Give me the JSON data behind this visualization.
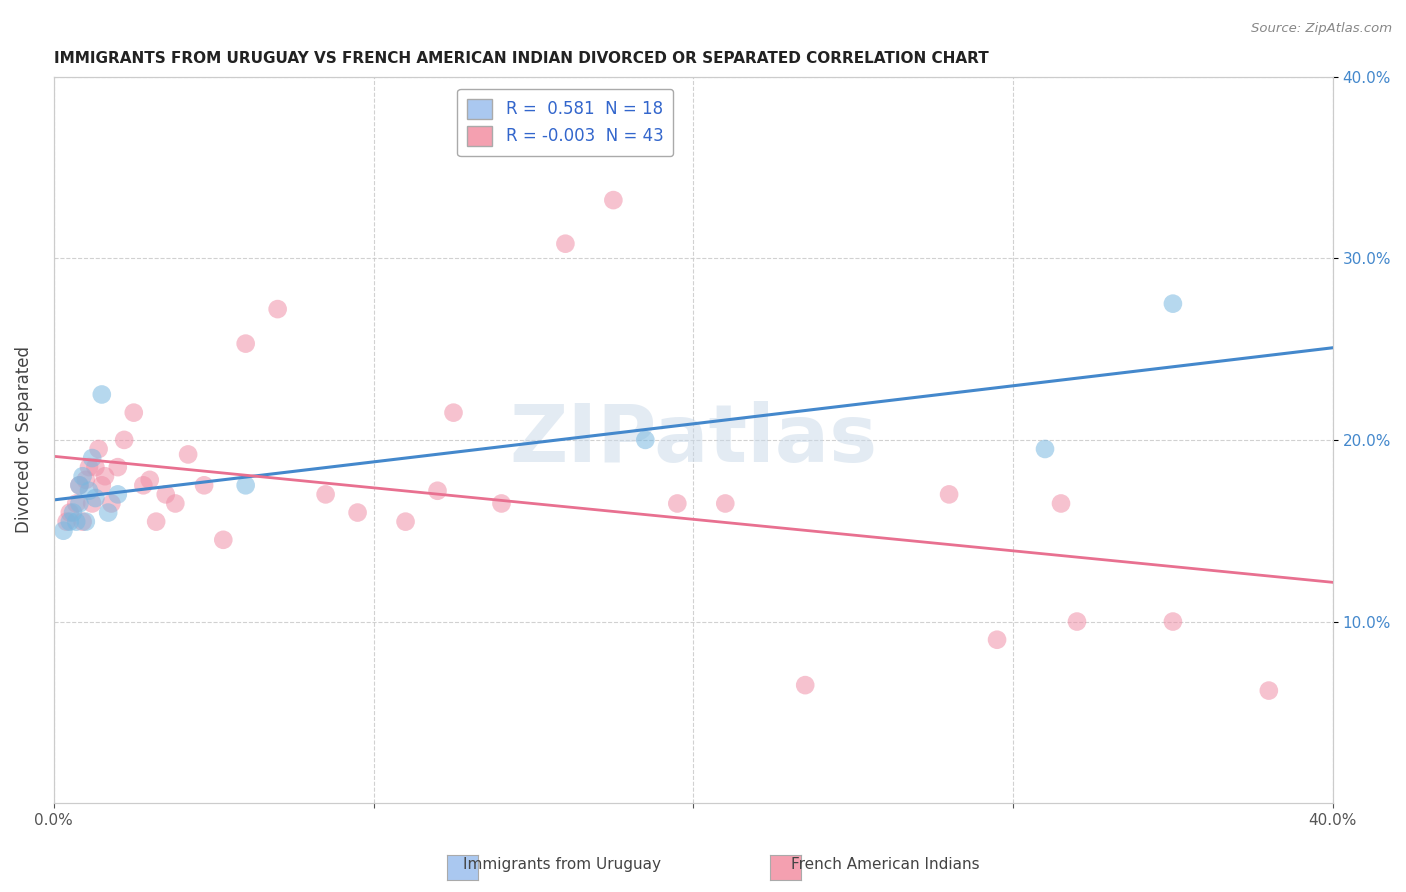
{
  "title": "IMMIGRANTS FROM URUGUAY VS FRENCH AMERICAN INDIAN DIVORCED OR SEPARATED CORRELATION CHART",
  "source": "Source: ZipAtlas.com",
  "ylabel": "Divorced or Separated",
  "xlim": [
    0.0,
    0.4
  ],
  "ylim": [
    0.0,
    0.4
  ],
  "legend1_color": "#aac8f0",
  "legend2_color": "#f4a0b0",
  "blue_color": "#7ab8e0",
  "pink_color": "#f090a8",
  "blue_line_color": "#4488cc",
  "pink_line_color": "#e87090",
  "watermark": "ZIPatlas",
  "blue_R": 0.581,
  "pink_R": -0.003,
  "blue_N": 18,
  "pink_N": 43,
  "blue_points_x": [
    0.003,
    0.005,
    0.006,
    0.007,
    0.008,
    0.008,
    0.009,
    0.01,
    0.011,
    0.012,
    0.013,
    0.015,
    0.017,
    0.02,
    0.06,
    0.185,
    0.31,
    0.35
  ],
  "blue_points_y": [
    0.15,
    0.155,
    0.16,
    0.155,
    0.165,
    0.175,
    0.18,
    0.155,
    0.172,
    0.19,
    0.168,
    0.225,
    0.16,
    0.17,
    0.175,
    0.2,
    0.195,
    0.275
  ],
  "pink_points_x": [
    0.004,
    0.005,
    0.007,
    0.008,
    0.009,
    0.01,
    0.011,
    0.012,
    0.013,
    0.014,
    0.015,
    0.016,
    0.018,
    0.02,
    0.022,
    0.025,
    0.028,
    0.03,
    0.032,
    0.035,
    0.038,
    0.042,
    0.047,
    0.053,
    0.06,
    0.07,
    0.085,
    0.095,
    0.11,
    0.12,
    0.125,
    0.14,
    0.16,
    0.175,
    0.195,
    0.21,
    0.235,
    0.28,
    0.295,
    0.315,
    0.32,
    0.35,
    0.38
  ],
  "pink_points_y": [
    0.155,
    0.16,
    0.165,
    0.175,
    0.155,
    0.178,
    0.185,
    0.165,
    0.185,
    0.195,
    0.175,
    0.18,
    0.165,
    0.185,
    0.2,
    0.215,
    0.175,
    0.178,
    0.155,
    0.17,
    0.165,
    0.192,
    0.175,
    0.145,
    0.253,
    0.272,
    0.17,
    0.16,
    0.155,
    0.172,
    0.215,
    0.165,
    0.308,
    0.332,
    0.165,
    0.165,
    0.065,
    0.17,
    0.09,
    0.165,
    0.1,
    0.1,
    0.062
  ]
}
